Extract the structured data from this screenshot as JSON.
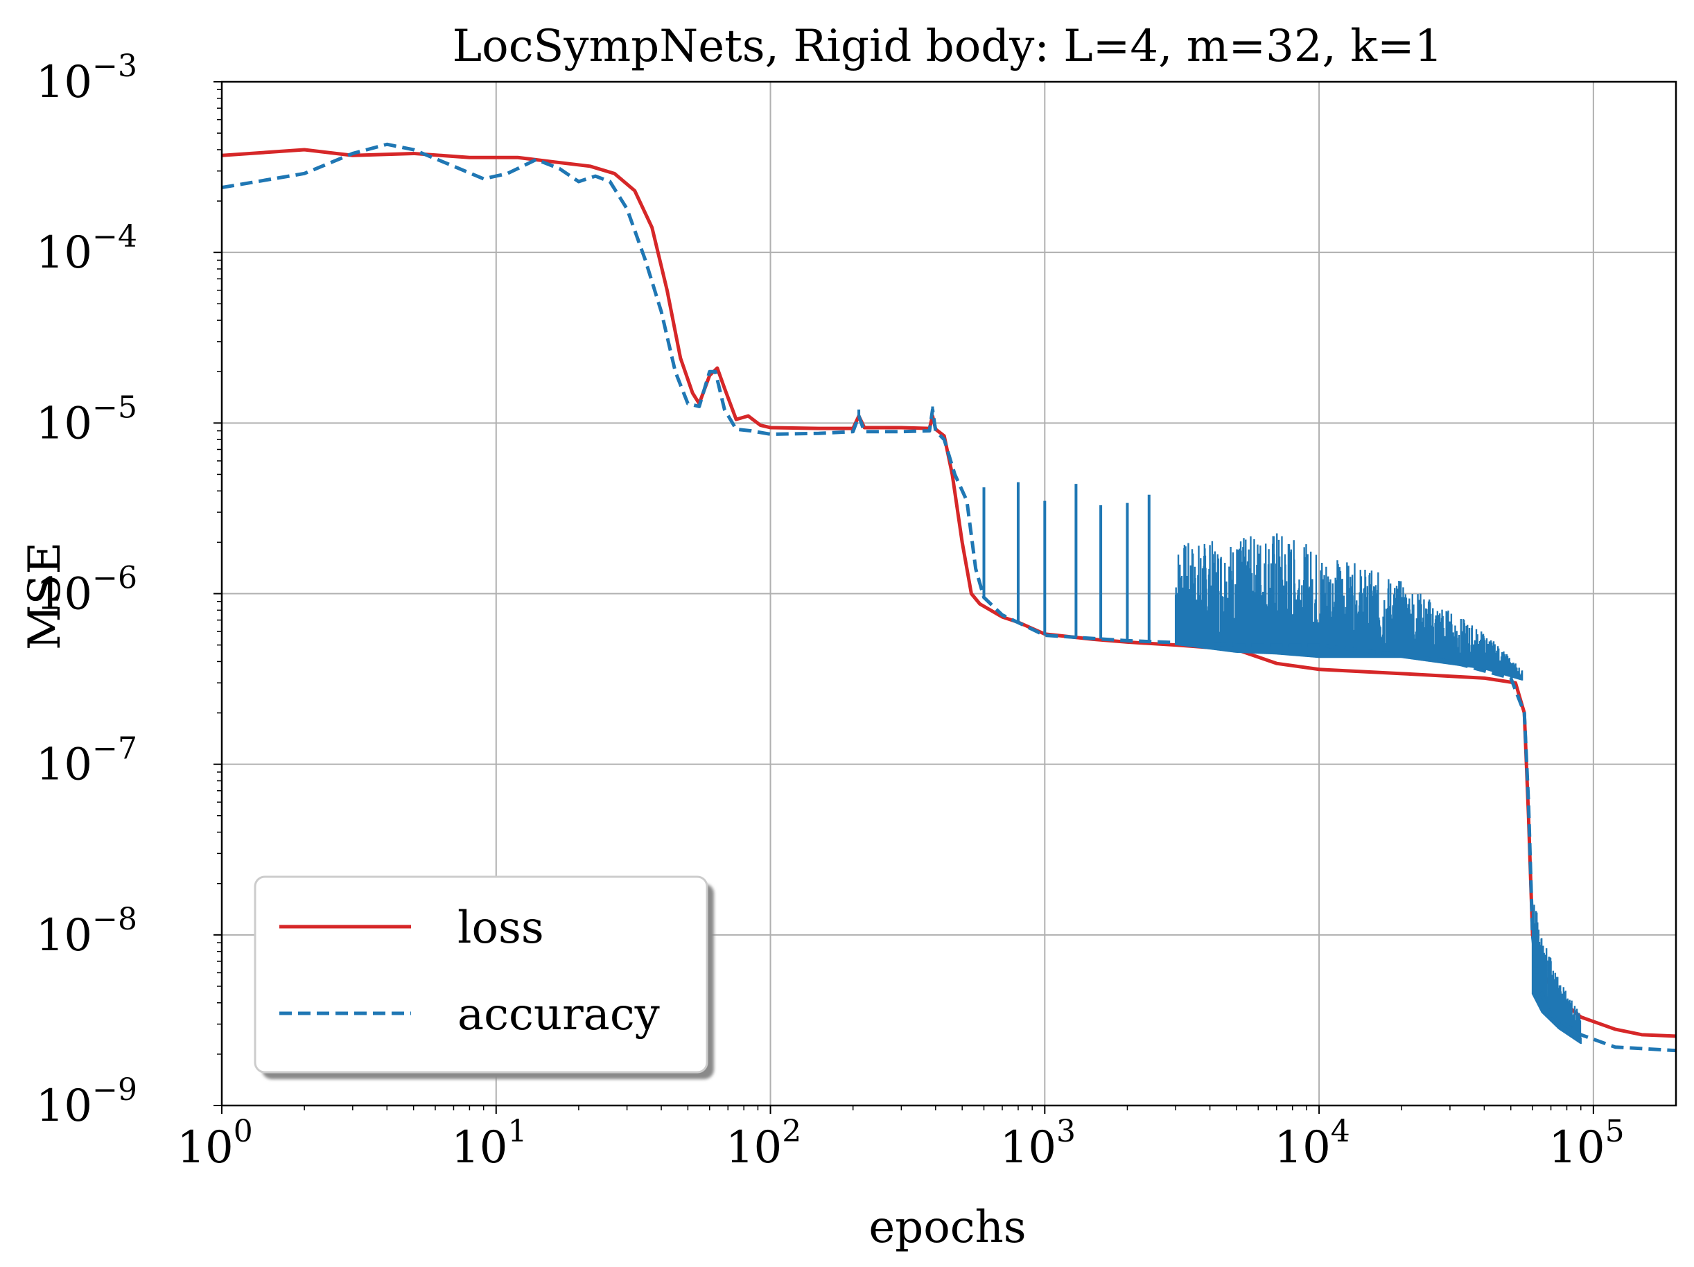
{
  "chart_data": {
    "type": "line",
    "title": "LocSympNets, Rigid body: L=4, m=32, k=1",
    "xlabel": "epochs",
    "ylabel": "MSE",
    "xscale": "log",
    "yscale": "log",
    "xlim": [
      1,
      200000
    ],
    "ylim": [
      1e-09,
      0.001
    ],
    "grid": true,
    "legend_position": "lower-left",
    "x_ticks": [
      {
        "value": 1,
        "base": "10",
        "exp": "0"
      },
      {
        "value": 10,
        "base": "10",
        "exp": "1"
      },
      {
        "value": 100,
        "base": "10",
        "exp": "2"
      },
      {
        "value": 1000,
        "base": "10",
        "exp": "3"
      },
      {
        "value": 10000,
        "base": "10",
        "exp": "4"
      },
      {
        "value": 100000,
        "base": "10",
        "exp": "5"
      }
    ],
    "y_ticks": [
      {
        "value": 1e-09,
        "base": "10",
        "exp": "−9"
      },
      {
        "value": 1e-08,
        "base": "10",
        "exp": "−8"
      },
      {
        "value": 1e-07,
        "base": "10",
        "exp": "−7"
      },
      {
        "value": 1e-06,
        "base": "10",
        "exp": "−6"
      },
      {
        "value": 1e-05,
        "base": "10",
        "exp": "−5"
      },
      {
        "value": 0.0001,
        "base": "10",
        "exp": "−4"
      },
      {
        "value": 0.001,
        "base": "10",
        "exp": "−3"
      }
    ],
    "series": [
      {
        "name": "loss",
        "color": "#d62728",
        "style": "solid",
        "points": [
          [
            1,
            0.00037
          ],
          [
            2,
            0.0004
          ],
          [
            3,
            0.00037
          ],
          [
            5,
            0.00038
          ],
          [
            8,
            0.00036
          ],
          [
            12,
            0.00036
          ],
          [
            16,
            0.00034
          ],
          [
            22,
            0.00032
          ],
          [
            27,
            0.00029
          ],
          [
            32,
            0.00023
          ],
          [
            37,
            0.00014
          ],
          [
            42,
            6e-05
          ],
          [
            47,
            2.4e-05
          ],
          [
            52,
            1.5e-05
          ],
          [
            55,
            1.3e-05
          ],
          [
            60,
            1.9e-05
          ],
          [
            64,
            2.1e-05
          ],
          [
            68,
            1.6e-05
          ],
          [
            75,
            1.05e-05
          ],
          [
            83,
            1.1e-05
          ],
          [
            92,
            9.7e-06
          ],
          [
            100,
            9.4e-06
          ],
          [
            150,
            9.3e-06
          ],
          [
            200,
            9.3e-06
          ],
          [
            210,
            1.1e-05
          ],
          [
            220,
            9.4e-06
          ],
          [
            300,
            9.4e-06
          ],
          [
            380,
            9.3e-06
          ],
          [
            390,
            1.1e-05
          ],
          [
            400,
            9.2e-06
          ],
          [
            430,
            8.4e-06
          ],
          [
            460,
            5e-06
          ],
          [
            500,
            2e-06
          ],
          [
            540,
            1e-06
          ],
          [
            580,
            8.7e-07
          ],
          [
            700,
            7.3e-07
          ],
          [
            800,
            6.8e-07
          ],
          [
            1000,
            5.8e-07
          ],
          [
            1500,
            5.4e-07
          ],
          [
            2000,
            5.2e-07
          ],
          [
            3000,
            5e-07
          ],
          [
            5000,
            4.7e-07
          ],
          [
            7000,
            3.9e-07
          ],
          [
            10000,
            3.6e-07
          ],
          [
            20000,
            3.4e-07
          ],
          [
            40000,
            3.2e-07
          ],
          [
            52000,
            3e-07
          ],
          [
            56000,
            2e-07
          ],
          [
            58000,
            5e-08
          ],
          [
            60000,
            1e-08
          ],
          [
            65000,
            6e-09
          ],
          [
            75000,
            4.2e-09
          ],
          [
            90000,
            3.3e-09
          ],
          [
            120000,
            2.8e-09
          ],
          [
            150000,
            2.6e-09
          ],
          [
            200000,
            2.55e-09
          ]
        ]
      },
      {
        "name": "accuracy",
        "color": "#1f77b4",
        "style": "dashed",
        "points": [
          [
            1,
            0.00024
          ],
          [
            2,
            0.00029
          ],
          [
            3,
            0.00038
          ],
          [
            4,
            0.00043
          ],
          [
            5,
            0.0004
          ],
          [
            7,
            0.00032
          ],
          [
            9,
            0.00027
          ],
          [
            11,
            0.00029
          ],
          [
            14,
            0.00035
          ],
          [
            17,
            0.00031
          ],
          [
            20,
            0.00026
          ],
          [
            23,
            0.00028
          ],
          [
            26,
            0.00026
          ],
          [
            30,
            0.00018
          ],
          [
            35,
            9e-05
          ],
          [
            40,
            4.5e-05
          ],
          [
            45,
            2e-05
          ],
          [
            50,
            1.3e-05
          ],
          [
            55,
            1.25e-05
          ],
          [
            60,
            2e-05
          ],
          [
            63,
            2e-05
          ],
          [
            68,
            1.2e-05
          ],
          [
            75,
            9.2e-06
          ],
          [
            85,
            9e-06
          ],
          [
            100,
            8.6e-06
          ],
          [
            150,
            8.7e-06
          ],
          [
            200,
            8.9e-06
          ],
          [
            210,
            1.1e-05
          ],
          [
            220,
            8.9e-06
          ],
          [
            300,
            8.9e-06
          ],
          [
            380,
            9e-06
          ],
          [
            390,
            1.2e-05
          ],
          [
            400,
            9e-06
          ],
          [
            430,
            8e-06
          ],
          [
            470,
            5e-06
          ],
          [
            520,
            3.5e-06
          ],
          [
            560,
            1.4e-06
          ],
          [
            600,
            9.5e-07
          ],
          [
            700,
            7.5e-07
          ],
          [
            1000,
            5.7e-07
          ],
          [
            2000,
            5.3e-07
          ],
          [
            5000,
            5e-07
          ],
          [
            10000,
            5e-07
          ],
          [
            30000,
            4e-07
          ],
          [
            50000,
            3.2e-07
          ],
          [
            56000,
            2e-07
          ],
          [
            58000,
            6e-08
          ],
          [
            60000,
            1e-08
          ],
          [
            63000,
            5e-09
          ],
          [
            70000,
            3.4e-09
          ],
          [
            90000,
            2.6e-09
          ],
          [
            120000,
            2.2e-09
          ],
          [
            200000,
            2.1e-09
          ]
        ],
        "spikes": [
          [
            210,
            1.2e-05
          ],
          [
            390,
            1.25e-05
          ],
          [
            600,
            4.2e-06
          ],
          [
            800,
            4.5e-06
          ],
          [
            1000,
            3.5e-06
          ],
          [
            1300,
            4.4e-06
          ],
          [
            1600,
            3.3e-06
          ],
          [
            2000,
            3.4e-06
          ],
          [
            2400,
            3.8e-06
          ]
        ],
        "noise_band": [
          [
            3000,
            5e-07,
            2e-06
          ],
          [
            5000,
            4.5e-07,
            2.1e-06
          ],
          [
            7000,
            4.4e-07,
            2.4e-06
          ],
          [
            10000,
            4.2e-07,
            1.8e-06
          ],
          [
            20000,
            4.2e-07,
            1.2e-06
          ],
          [
            40000,
            3.6e-07,
            6e-07
          ],
          [
            55000,
            3.1e-07,
            3.6e-07
          ]
        ],
        "tail_band": [
          [
            60000,
            4.5e-09,
            1.8e-08
          ],
          [
            65000,
            3.5e-09,
            1e-08
          ],
          [
            75000,
            2.8e-09,
            5.5e-09
          ],
          [
            90000,
            2.3e-09,
            3.4e-09
          ]
        ]
      }
    ]
  }
}
